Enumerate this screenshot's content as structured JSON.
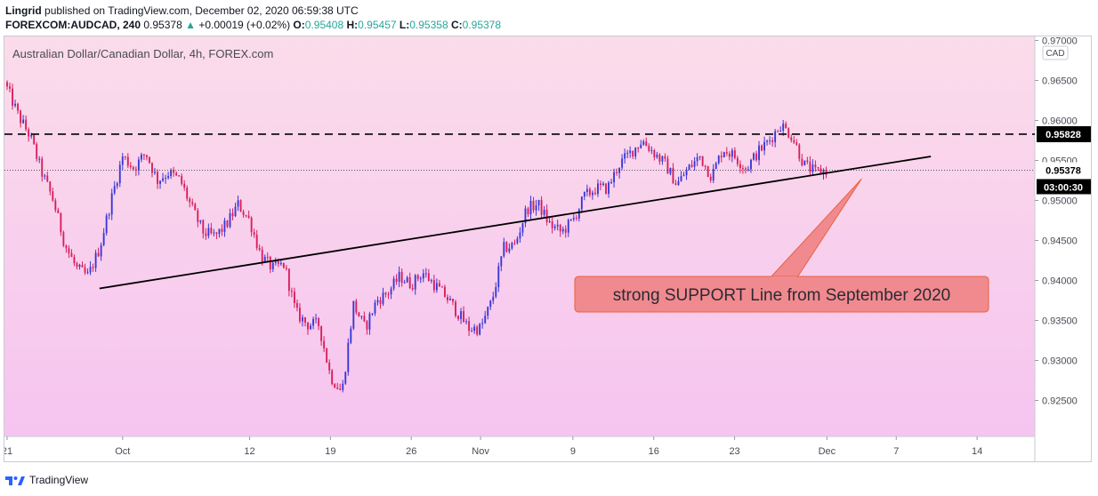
{
  "header": {
    "author": "Lingrid",
    "published_text": "published on TradingView.com, December 02, 2020 06:59:38 UTC",
    "symbol": "FOREXCOM:AUDCAD, 240",
    "price": "0.95378",
    "change_arrow": "▲",
    "change": "+0.00019 (+0.02%)",
    "o_label": "O:",
    "o_value": "0.95408",
    "h_label": "H:",
    "h_value": "0.95457",
    "l_label": "L:",
    "l_value": "0.95358",
    "c_label": "C:",
    "c_value": "0.95378"
  },
  "footer": {
    "brand": "TradingView"
  },
  "colors": {
    "up_candle": "#3a36d6",
    "down_candle": "#d81e5a",
    "line_color": "#000000",
    "callout_fill": "#f08a8f",
    "callout_border": "#e8623f",
    "bg_top": "#fbdcea",
    "bg_bottom": "#f6c4f0"
  },
  "chart_data": {
    "type": "candlestick",
    "title": "Australian Dollar/Canadian Dollar, 4h, FOREX.com",
    "currency_badge": "CAD",
    "y_ticks": [
      "0.97000",
      "0.96500",
      "0.96000",
      "0.95500",
      "0.95000",
      "0.94500",
      "0.94000",
      "0.93500",
      "0.93000",
      "0.92500"
    ],
    "y_tick_values": [
      0.97,
      0.965,
      0.96,
      0.955,
      0.95,
      0.945,
      0.94,
      0.935,
      0.93,
      0.925
    ],
    "ylim": [
      0.9205,
      0.9705
    ],
    "x_ticks": [
      {
        "label": "21",
        "day": 0
      },
      {
        "label": "Oct",
        "day": 10
      },
      {
        "label": "12",
        "day": 21
      },
      {
        "label": "19",
        "day": 28
      },
      {
        "label": "26",
        "day": 35
      },
      {
        "label": "Nov",
        "day": 41
      },
      {
        "label": "9",
        "day": 49
      },
      {
        "label": "16",
        "day": 56
      },
      {
        "label": "23",
        "day": 63
      },
      {
        "label": "Dec",
        "day": 71
      },
      {
        "label": "7",
        "day": 77
      },
      {
        "label": "14",
        "day": 84
      }
    ],
    "xlim": [
      0,
      88
    ],
    "close_path": [
      [
        0,
        0.964
      ],
      [
        1,
        0.9605
      ],
      [
        2,
        0.958
      ],
      [
        3,
        0.9535
      ],
      [
        4,
        0.95
      ],
      [
        5,
        0.9445
      ],
      [
        6,
        0.9415
      ],
      [
        7,
        0.9405
      ],
      [
        8,
        0.944
      ],
      [
        9,
        0.95
      ],
      [
        10,
        0.9555
      ],
      [
        11,
        0.954
      ],
      [
        12,
        0.956
      ],
      [
        13,
        0.9525
      ],
      [
        14,
        0.9535
      ],
      [
        15,
        0.9525
      ],
      [
        16,
        0.949
      ],
      [
        17,
        0.946
      ],
      [
        18,
        0.9455
      ],
      [
        19,
        0.947
      ],
      [
        20,
        0.9495
      ],
      [
        21,
        0.9475
      ],
      [
        22,
        0.943
      ],
      [
        23,
        0.9415
      ],
      [
        24,
        0.942
      ],
      [
        25,
        0.936
      ],
      [
        26,
        0.9345
      ],
      [
        27,
        0.9345
      ],
      [
        28,
        0.928
      ],
      [
        29,
        0.926
      ],
      [
        30,
        0.937
      ],
      [
        31,
        0.934
      ],
      [
        32,
        0.9375
      ],
      [
        33,
        0.9385
      ],
      [
        34,
        0.9405
      ],
      [
        35,
        0.9395
      ],
      [
        36,
        0.941
      ],
      [
        37,
        0.9395
      ],
      [
        38,
        0.938
      ],
      [
        39,
        0.936
      ],
      [
        40,
        0.934
      ],
      [
        41,
        0.934
      ],
      [
        42,
        0.9375
      ],
      [
        43,
        0.944
      ],
      [
        44,
        0.9445
      ],
      [
        45,
        0.949
      ],
      [
        46,
        0.9495
      ],
      [
        47,
        0.947
      ],
      [
        48,
        0.946
      ],
      [
        49,
        0.9475
      ],
      [
        50,
        0.9505
      ],
      [
        51,
        0.9515
      ],
      [
        52,
        0.9515
      ],
      [
        53,
        0.9545
      ],
      [
        54,
        0.956
      ],
      [
        55,
        0.9575
      ],
      [
        56,
        0.956
      ],
      [
        57,
        0.9545
      ],
      [
        58,
        0.952
      ],
      [
        59,
        0.954
      ],
      [
        60,
        0.9555
      ],
      [
        61,
        0.953
      ],
      [
        62,
        0.9565
      ],
      [
        63,
        0.9555
      ],
      [
        64,
        0.954
      ],
      [
        65,
        0.956
      ],
      [
        66,
        0.9575
      ],
      [
        67,
        0.9595
      ],
      [
        68,
        0.958
      ],
      [
        69,
        0.9545
      ],
      [
        70,
        0.9535
      ],
      [
        71,
        0.9538
      ]
    ],
    "horizontal_level": {
      "value": 0.95828,
      "label": "0.95828",
      "style": "dashed"
    },
    "current_price": {
      "value": 0.95378,
      "label": "0.95378",
      "countdown": "03:00:30"
    },
    "trendline": {
      "from": {
        "day": 8,
        "price": 0.939
      },
      "to": {
        "day": 80,
        "price": 0.9555
      }
    },
    "annotation": {
      "text": "strong SUPPORT Line from September 2020",
      "points_to": {
        "day": 74,
        "price": 0.9527
      }
    }
  }
}
